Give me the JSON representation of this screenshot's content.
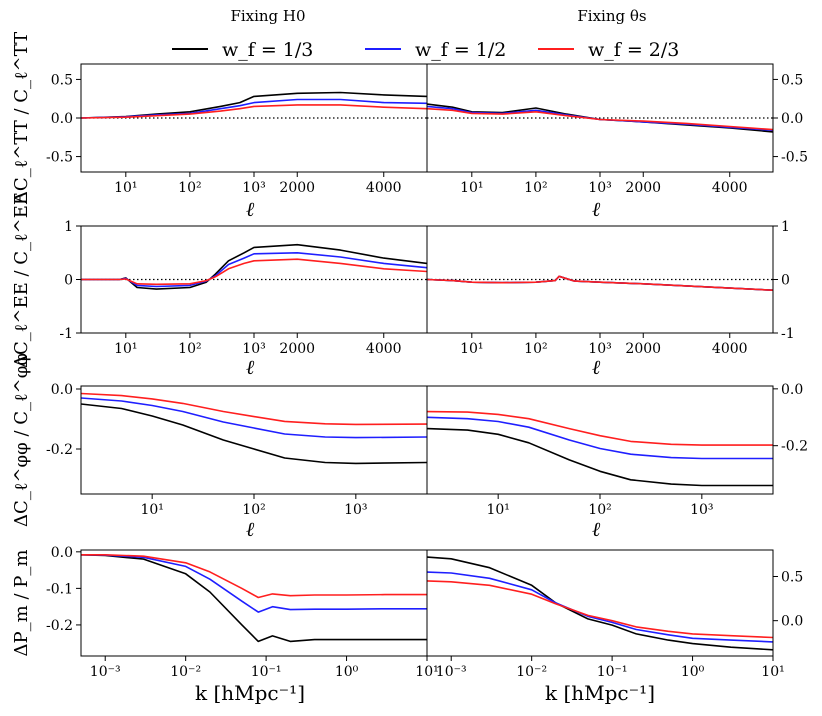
{
  "colors": {
    "black": "#000000",
    "blue": "#1f1fff",
    "red": "#ff1f1f"
  },
  "figure": {
    "column_titles": [
      "Fixing H0",
      "Fixing θs"
    ],
    "legend": [
      {
        "label": "w_f = 1/3",
        "color": "#000000"
      },
      {
        "label": "w_f = 1/2",
        "color": "#1f1fff"
      },
      {
        "label": "w_f = 2/3",
        "color": "#ff1f1f"
      }
    ]
  },
  "chart_data": [
    {
      "type": "line",
      "row": 0,
      "column": "left",
      "title": "Fixing H0",
      "ylabel": "ΔC_ℓ^TT / C_ℓ^TT",
      "xlabel": "ℓ",
      "xscale": "log-to-1000-then-linear",
      "xlim": [
        2,
        5000
      ],
      "ylim": [
        -0.7,
        0.7
      ],
      "yticks": [
        "-0.5",
        "0.0",
        "0.5"
      ],
      "xticks": [
        "10¹",
        "10²",
        "10³",
        "2000",
        "4000"
      ],
      "reference_line": 0,
      "series": [
        {
          "name": "w_f = 1/3",
          "color": "#000000",
          "x": [
            2,
            10,
            30,
            100,
            300,
            600,
            1000,
            2000,
            3000,
            4000,
            5000
          ],
          "y": [
            0,
            0.02,
            0.05,
            0.08,
            0.15,
            0.2,
            0.28,
            0.32,
            0.33,
            0.3,
            0.28
          ]
        },
        {
          "name": "w_f = 1/2",
          "color": "#1f1fff",
          "x": [
            2,
            10,
            30,
            100,
            300,
            600,
            1000,
            2000,
            3000,
            4000,
            5000
          ],
          "y": [
            0,
            0.015,
            0.04,
            0.06,
            0.12,
            0.16,
            0.2,
            0.24,
            0.24,
            0.2,
            0.19
          ]
        },
        {
          "name": "w_f = 2/3",
          "color": "#ff1f1f",
          "x": [
            2,
            10,
            30,
            100,
            300,
            600,
            1000,
            2000,
            3000,
            4000,
            5000
          ],
          "y": [
            0,
            0.01,
            0.03,
            0.05,
            0.09,
            0.12,
            0.15,
            0.17,
            0.17,
            0.14,
            0.12
          ]
        }
      ]
    },
    {
      "type": "line",
      "row": 0,
      "column": "right",
      "title": "Fixing θs",
      "ylabel": "",
      "xlabel": "ℓ",
      "xscale": "log-to-1000-then-linear",
      "xlim": [
        2,
        5000
      ],
      "ylim": [
        -0.7,
        0.7
      ],
      "yticks": [
        "-0.5",
        "0.0",
        "0.5"
      ],
      "xticks": [
        "10¹",
        "10²",
        "10³",
        "2000",
        "4000"
      ],
      "reference_line": 0,
      "series": [
        {
          "name": "w_f = 1/3",
          "color": "#000000",
          "x": [
            2,
            5,
            10,
            30,
            100,
            300,
            1000,
            2000,
            3000,
            4000,
            5000
          ],
          "y": [
            0.18,
            0.14,
            0.08,
            0.07,
            0.13,
            0.05,
            -0.02,
            -0.05,
            -0.09,
            -0.13,
            -0.18
          ]
        },
        {
          "name": "w_f = 1/2",
          "color": "#1f1fff",
          "x": [
            2,
            5,
            10,
            30,
            100,
            300,
            1000,
            2000,
            3000,
            4000,
            5000
          ],
          "y": [
            0.15,
            0.12,
            0.07,
            0.06,
            0.1,
            0.04,
            -0.02,
            -0.05,
            -0.08,
            -0.12,
            -0.16
          ]
        },
        {
          "name": "w_f = 2/3",
          "color": "#ff1f1f",
          "x": [
            2,
            5,
            10,
            30,
            100,
            300,
            1000,
            2000,
            3000,
            4000,
            5000
          ],
          "y": [
            0.12,
            0.1,
            0.06,
            0.05,
            0.08,
            0.03,
            -0.02,
            -0.04,
            -0.07,
            -0.11,
            -0.15
          ]
        }
      ]
    },
    {
      "type": "line",
      "row": 1,
      "column": "left",
      "ylabel": "ΔC_ℓ^EE / C_ℓ^EE",
      "xlabel": "ℓ",
      "xscale": "log-to-1000-then-linear",
      "xlim": [
        2,
        5000
      ],
      "ylim": [
        -1,
        1
      ],
      "yticks": [
        "-1",
        "0",
        "1"
      ],
      "xticks": [
        "10¹",
        "10²",
        "10³",
        "2000",
        "4000"
      ],
      "reference_line": 0,
      "series": [
        {
          "name": "w_f = 1/3",
          "color": "#000000",
          "x": [
            2,
            8,
            10,
            15,
            30,
            100,
            180,
            250,
            400,
            700,
            1000,
            2000,
            3000,
            4000,
            5000
          ],
          "y": [
            0,
            0,
            0.03,
            -0.15,
            -0.18,
            -0.15,
            -0.05,
            0.1,
            0.35,
            0.5,
            0.6,
            0.65,
            0.55,
            0.4,
            0.3
          ]
        },
        {
          "name": "w_f = 1/2",
          "color": "#1f1fff",
          "x": [
            2,
            8,
            10,
            15,
            30,
            100,
            180,
            250,
            400,
            700,
            1000,
            2000,
            3000,
            4000,
            5000
          ],
          "y": [
            0,
            0,
            0.02,
            -0.11,
            -0.13,
            -0.11,
            -0.03,
            0.07,
            0.28,
            0.4,
            0.48,
            0.5,
            0.42,
            0.3,
            0.22
          ]
        },
        {
          "name": "w_f = 2/3",
          "color": "#ff1f1f",
          "x": [
            2,
            8,
            10,
            15,
            30,
            100,
            180,
            250,
            400,
            700,
            1000,
            2000,
            3000,
            4000,
            5000
          ],
          "y": [
            0,
            0,
            0.01,
            -0.08,
            -0.09,
            -0.08,
            -0.02,
            0.05,
            0.2,
            0.3,
            0.35,
            0.38,
            0.3,
            0.2,
            0.15
          ]
        }
      ]
    },
    {
      "type": "line",
      "row": 1,
      "column": "right",
      "ylabel": "",
      "xlabel": "ℓ",
      "xscale": "log-to-1000-then-linear",
      "xlim": [
        2,
        5000
      ],
      "ylim": [
        -1,
        1
      ],
      "yticks": [
        "-1",
        "0",
        "1"
      ],
      "xticks": [
        "10¹",
        "10²",
        "10³",
        "2000",
        "4000"
      ],
      "reference_line": 0,
      "series": [
        {
          "name": "w_f = 1/3",
          "color": "#000000",
          "x": [
            2,
            5,
            10,
            30,
            100,
            200,
            230,
            400,
            1000,
            2000,
            3000,
            4000,
            5000
          ],
          "y": [
            0,
            -0.02,
            -0.05,
            -0.06,
            -0.05,
            -0.02,
            0.06,
            -0.03,
            -0.05,
            -0.08,
            -0.12,
            -0.16,
            -0.2
          ]
        },
        {
          "name": "w_f = 1/2",
          "color": "#1f1fff",
          "x": [
            2,
            5,
            10,
            30,
            100,
            200,
            230,
            400,
            1000,
            2000,
            3000,
            4000,
            5000
          ],
          "y": [
            0,
            -0.02,
            -0.05,
            -0.06,
            -0.05,
            -0.02,
            0.06,
            -0.03,
            -0.05,
            -0.08,
            -0.12,
            -0.16,
            -0.2
          ]
        },
        {
          "name": "w_f = 2/3",
          "color": "#ff1f1f",
          "x": [
            2,
            5,
            10,
            30,
            100,
            200,
            230,
            400,
            1000,
            2000,
            3000,
            4000,
            5000
          ],
          "y": [
            0,
            -0.02,
            -0.05,
            -0.06,
            -0.05,
            -0.02,
            0.06,
            -0.03,
            -0.05,
            -0.08,
            -0.12,
            -0.16,
            -0.2
          ]
        }
      ]
    },
    {
      "type": "line",
      "row": 2,
      "column": "left",
      "ylabel": "ΔC_ℓ^φφ / C_ℓ^φφ",
      "xlabel": "ℓ",
      "xscale": "log",
      "xlim": [
        2,
        5000
      ],
      "ylim": [
        -0.35,
        0.01
      ],
      "yticks": [
        "0.0",
        "-0.2"
      ],
      "xticks": [
        "10¹",
        "10²",
        "10³"
      ],
      "series": [
        {
          "name": "w_f = 1/3",
          "color": "#000000",
          "x": [
            2,
            5,
            10,
            20,
            50,
            100,
            200,
            500,
            1000,
            5000
          ],
          "y": [
            -0.05,
            -0.065,
            -0.09,
            -0.12,
            -0.17,
            -0.2,
            -0.23,
            -0.245,
            -0.248,
            -0.245
          ]
        },
        {
          "name": "w_f = 1/2",
          "color": "#1f1fff",
          "x": [
            2,
            5,
            10,
            20,
            50,
            100,
            200,
            500,
            1000,
            5000
          ],
          "y": [
            -0.03,
            -0.04,
            -0.055,
            -0.075,
            -0.11,
            -0.13,
            -0.15,
            -0.16,
            -0.162,
            -0.16
          ]
        },
        {
          "name": "w_f = 2/3",
          "color": "#ff1f1f",
          "x": [
            2,
            5,
            10,
            20,
            50,
            100,
            200,
            500,
            1000,
            5000
          ],
          "y": [
            -0.015,
            -0.022,
            -0.033,
            -0.048,
            -0.075,
            -0.092,
            -0.108,
            -0.116,
            -0.118,
            -0.117
          ]
        }
      ]
    },
    {
      "type": "line",
      "row": 2,
      "column": "right",
      "ylabel": "",
      "xlabel": "ℓ",
      "xscale": "log",
      "xlim": [
        2,
        5000
      ],
      "ylim": [
        -0.37,
        0.01
      ],
      "yticks": [
        "0.0",
        "-0.2"
      ],
      "xticks": [
        "10¹",
        "10²",
        "10³"
      ],
      "series": [
        {
          "name": "w_f = 1/3",
          "color": "#000000",
          "x": [
            2,
            5,
            10,
            20,
            50,
            100,
            200,
            500,
            1000,
            5000
          ],
          "y": [
            -0.14,
            -0.145,
            -0.16,
            -0.19,
            -0.25,
            -0.29,
            -0.32,
            -0.335,
            -0.34,
            -0.34
          ]
        },
        {
          "name": "w_f = 1/2",
          "color": "#1f1fff",
          "x": [
            2,
            5,
            10,
            20,
            50,
            100,
            200,
            500,
            1000,
            5000
          ],
          "y": [
            -0.1,
            -0.105,
            -0.115,
            -0.135,
            -0.18,
            -0.21,
            -0.23,
            -0.242,
            -0.245,
            -0.245
          ]
        },
        {
          "name": "w_f = 2/3",
          "color": "#ff1f1f",
          "x": [
            2,
            5,
            10,
            20,
            50,
            100,
            200,
            500,
            1000,
            5000
          ],
          "y": [
            -0.08,
            -0.082,
            -0.09,
            -0.105,
            -0.14,
            -0.165,
            -0.185,
            -0.195,
            -0.198,
            -0.198
          ]
        }
      ]
    },
    {
      "type": "line",
      "row": 3,
      "column": "left",
      "ylabel": "ΔP_m / P_m",
      "xlabel": "k [hMpc⁻¹]",
      "xscale": "log",
      "xlim": [
        0.0005,
        10
      ],
      "ylim": [
        -0.285,
        0.005
      ],
      "yticks": [
        "0.0",
        "-0.1",
        "-0.2"
      ],
      "xticks": [
        "10⁻³",
        "10⁻²",
        "10⁻¹",
        "10⁰",
        "10¹"
      ],
      "series": [
        {
          "name": "w_f = 1/3",
          "color": "#000000",
          "x": [
            0.0005,
            0.001,
            0.003,
            0.01,
            0.02,
            0.05,
            0.08,
            0.12,
            0.2,
            0.4,
            1,
            3,
            10
          ],
          "y": [
            -0.008,
            -0.01,
            -0.02,
            -0.06,
            -0.11,
            -0.2,
            -0.245,
            -0.23,
            -0.245,
            -0.24,
            -0.24,
            -0.24,
            -0.24
          ]
        },
        {
          "name": "w_f = 1/2",
          "color": "#1f1fff",
          "x": [
            0.0005,
            0.001,
            0.003,
            0.01,
            0.02,
            0.05,
            0.08,
            0.12,
            0.2,
            0.4,
            1,
            3,
            10
          ],
          "y": [
            -0.008,
            -0.009,
            -0.015,
            -0.04,
            -0.075,
            -0.135,
            -0.165,
            -0.15,
            -0.158,
            -0.157,
            -0.157,
            -0.156,
            -0.156
          ]
        },
        {
          "name": "w_f = 2/3",
          "color": "#ff1f1f",
          "x": [
            0.0005,
            0.001,
            0.003,
            0.01,
            0.02,
            0.05,
            0.08,
            0.12,
            0.2,
            0.4,
            1,
            3,
            10
          ],
          "y": [
            -0.008,
            -0.008,
            -0.012,
            -0.03,
            -0.055,
            -0.1,
            -0.125,
            -0.115,
            -0.12,
            -0.118,
            -0.118,
            -0.117,
            -0.117
          ]
        }
      ]
    },
    {
      "type": "line",
      "row": 3,
      "column": "right",
      "ylabel": "",
      "xlabel": "k [hMpc⁻¹]",
      "xscale": "log",
      "xlim": [
        0.0005,
        10
      ],
      "ylim": [
        -0.4,
        0.8
      ],
      "yticks": [
        "0.5",
        "0.0"
      ],
      "xticks": [
        "10⁻³",
        "10⁻²",
        "10⁻¹",
        "10⁰",
        "10¹"
      ],
      "series": [
        {
          "name": "w_f = 1/3",
          "color": "#000000",
          "x": [
            0.0005,
            0.001,
            0.003,
            0.01,
            0.02,
            0.05,
            0.1,
            0.2,
            0.5,
            1,
            3,
            10
          ],
          "y": [
            0.72,
            0.7,
            0.6,
            0.4,
            0.2,
            0.02,
            -0.05,
            -0.15,
            -0.22,
            -0.26,
            -0.3,
            -0.33
          ]
        },
        {
          "name": "w_f = 1/2",
          "color": "#1f1fff",
          "x": [
            0.0005,
            0.001,
            0.003,
            0.01,
            0.02,
            0.05,
            0.1,
            0.2,
            0.5,
            1,
            3,
            10
          ],
          "y": [
            0.55,
            0.54,
            0.48,
            0.35,
            0.2,
            0.05,
            -0.02,
            -0.1,
            -0.16,
            -0.2,
            -0.22,
            -0.24
          ]
        },
        {
          "name": "w_f = 2/3",
          "color": "#ff1f1f",
          "x": [
            0.0005,
            0.001,
            0.003,
            0.01,
            0.02,
            0.05,
            0.1,
            0.2,
            0.5,
            1,
            3,
            10
          ],
          "y": [
            0.45,
            0.44,
            0.4,
            0.3,
            0.19,
            0.06,
            0.0,
            -0.07,
            -0.12,
            -0.15,
            -0.17,
            -0.19
          ]
        }
      ]
    }
  ]
}
